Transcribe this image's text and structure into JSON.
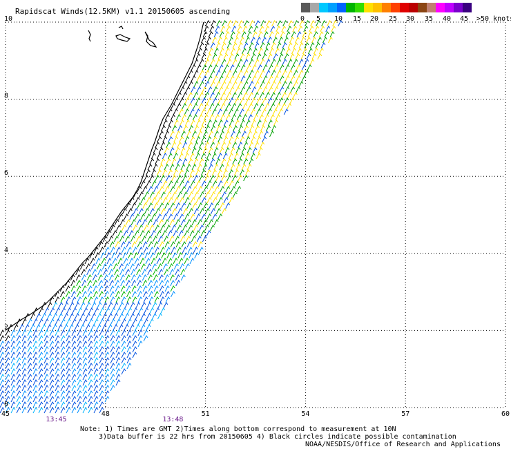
{
  "title": "Rapidscat Winds(12.5KM) v1.1 20150605 ascending",
  "legend": {
    "labels": [
      "0",
      "5",
      "10",
      "15",
      "20",
      "25",
      "30",
      "35",
      "40",
      "45",
      ">50 knots"
    ],
    "colors": [
      "#5a5a5a",
      "#a8a8a8",
      "#00c8ff",
      "#00a0ff",
      "#0064ff",
      "#00b400",
      "#33dd00",
      "#ffe000",
      "#ffc000",
      "#ff8000",
      "#ff4000",
      "#e00000",
      "#bb0000",
      "#8b4513",
      "#c08070",
      "#ff00ff",
      "#c000ff",
      "#7a00cc",
      "#3a0080"
    ]
  },
  "map": {
    "x_ticks": [
      "45",
      "48",
      "51",
      "54",
      "57",
      "60"
    ],
    "y_ticks": [
      "0",
      "2",
      "4",
      "6",
      "8",
      "10"
    ],
    "lon_range": [
      45,
      60
    ],
    "lat_range": [
      0,
      10
    ],
    "times": [
      {
        "label": "13:45",
        "lon": 46.5
      },
      {
        "label": "13:48",
        "lon": 50.0
      }
    ]
  },
  "notes": [
    "Note: 1) Times are GMT 2)Times along bottom correspond to measurement at 10N",
    "3)Data buffer is 22 hrs from 20150605 4) Black circles indicate possible contamination",
    "NOAA/NESDIS/Office of Research and Applications"
  ]
}
